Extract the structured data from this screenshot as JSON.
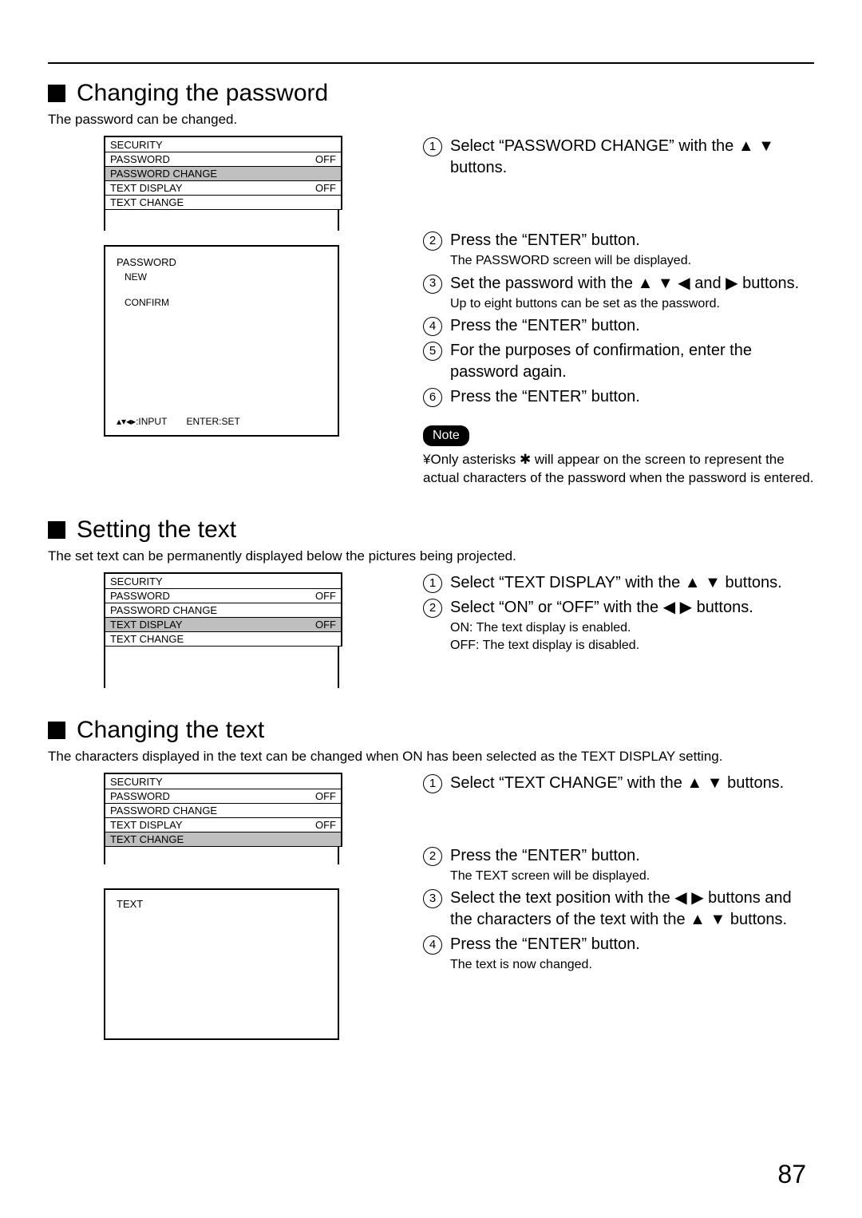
{
  "page_number": "87",
  "sections": {
    "password": {
      "heading": "Changing the password",
      "intro": "The password can be changed.",
      "menu": {
        "title": "SECURITY",
        "rows": [
          {
            "label": "PASSWORD",
            "value": "OFF",
            "highlight": false
          },
          {
            "label": "PASSWORD CHANGE",
            "value": "",
            "highlight": true
          },
          {
            "label": "TEXT DISPLAY",
            "value": "OFF",
            "highlight": false
          },
          {
            "label": "TEXT CHANGE",
            "value": "",
            "highlight": false
          }
        ]
      },
      "password_box": {
        "title": "PASSWORD",
        "new": "NEW",
        "confirm": "CONFIRM",
        "footer_input": ":INPUT",
        "footer_enter": "ENTER:SET"
      },
      "steps": [
        {
          "n": "1",
          "text": "Select “PASSWORD CHANGE” with the ▲ ▼ buttons.",
          "sub": ""
        },
        {
          "n": "2",
          "text": "Press the “ENTER” button.",
          "sub": "The PASSWORD screen will be displayed."
        },
        {
          "n": "3",
          "text": "Set the password with the     ▲  ▼  ◀ and ▶ buttons.",
          "sub": "Up to eight buttons can be set as the password."
        },
        {
          "n": "4",
          "text": "Press the “ENTER” button.",
          "sub": ""
        },
        {
          "n": "5",
          "text": "For the purposes of confirmation, enter the password again.",
          "sub": ""
        },
        {
          "n": "6",
          "text": "Press the “ENTER” button.",
          "sub": ""
        }
      ],
      "note_label": "Note",
      "note_text": "Only asterisks ✱ will appear on the screen to represent the actual characters of the password when the password is entered."
    },
    "settext": {
      "heading": "Setting the text",
      "intro": "The set text can be permanently displayed below the pictures being projected.",
      "menu": {
        "title": "SECURITY",
        "rows": [
          {
            "label": "PASSWORD",
            "value": "OFF",
            "highlight": false
          },
          {
            "label": "PASSWORD CHANGE",
            "value": "",
            "highlight": false
          },
          {
            "label": "TEXT DISPLAY",
            "value": "OFF",
            "highlight": true
          },
          {
            "label": "TEXT CHANGE",
            "value": "",
            "highlight": false
          }
        ]
      },
      "steps": [
        {
          "n": "1",
          "text": "Select “TEXT DISPLAY” with the  ▲ ▼ buttons.",
          "sub": ""
        },
        {
          "n": "2",
          "text": "Select “ON” or “OFF” with the  ◀ ▶ buttons.",
          "sub": "ON: The text display is enabled.\nOFF: The text display is disabled."
        }
      ]
    },
    "changetext": {
      "heading": "Changing the text",
      "intro": "The characters displayed in the text can be changed when  ON  has been selected as the  TEXT DISPLAY setting.",
      "menu": {
        "title": "SECURITY",
        "rows": [
          {
            "label": "PASSWORD",
            "value": "OFF",
            "highlight": false
          },
          {
            "label": "PASSWORD CHANGE",
            "value": "",
            "highlight": false
          },
          {
            "label": "TEXT DISPLAY",
            "value": "OFF",
            "highlight": false
          },
          {
            "label": "TEXT CHANGE",
            "value": "",
            "highlight": true
          }
        ]
      },
      "text_box_label": "TEXT",
      "steps": [
        {
          "n": "1",
          "text": "Select “TEXT CHANGE” with the  ▲ ▼ buttons.",
          "sub": ""
        },
        {
          "n": "2",
          "text": "Press the “ENTER” button.",
          "sub": "The TEXT screen will be displayed."
        },
        {
          "n": "3",
          "text": "Select the text position with the     ◀ ▶ buttons and the characters of the text with the  ▲  ▼ buttons.",
          "sub": ""
        },
        {
          "n": "4",
          "text": "Press the “ENTER” button.",
          "sub": "The text is now changed."
        }
      ]
    }
  }
}
